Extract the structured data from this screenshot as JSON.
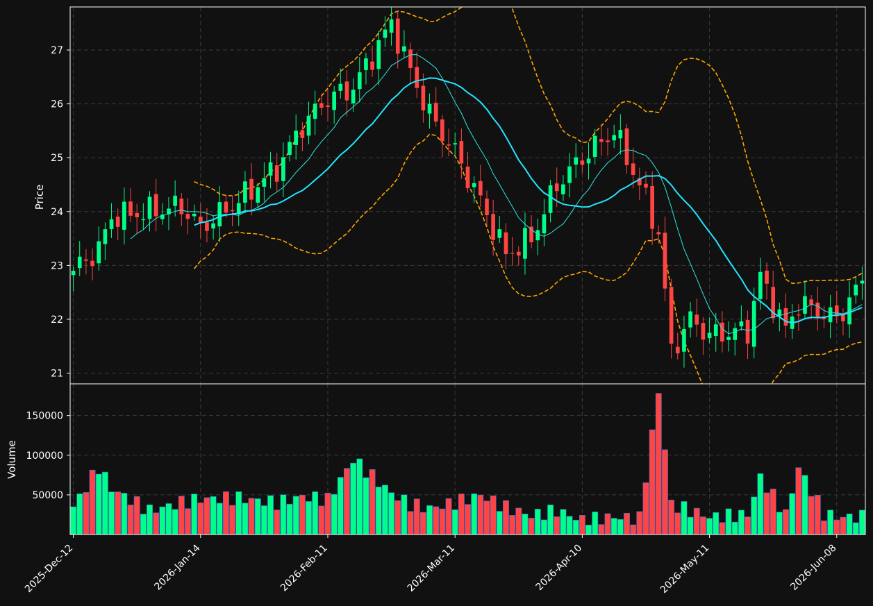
{
  "chart_data": {
    "type": "candlestick",
    "colors": {
      "background": "#111111",
      "up": "#00ff88",
      "down": "#ff4444",
      "sma_fast": "#2ee8e0",
      "sma_slow": "#22e6ff",
      "bands": "#ffa500",
      "text": "#ffffff"
    },
    "price_axis": {
      "label": "Price",
      "ylim": [
        20.8,
        27.8
      ],
      "ticks": [
        21,
        22,
        23,
        24,
        25,
        26,
        27
      ]
    },
    "volume_axis": {
      "label": "Volume",
      "ylim": [
        0,
        190000
      ],
      "ticks": [
        50000,
        100000,
        150000
      ],
      "tick_labels": [
        "50000",
        "100000",
        "150000"
      ]
    },
    "x_ticks": [
      {
        "index": 0,
        "label": "2025-Dec-12"
      },
      {
        "index": 20,
        "label": "2026-Jan-14"
      },
      {
        "index": 40,
        "label": "2026-Feb-11"
      },
      {
        "index": 60,
        "label": "2026-Mar-11"
      },
      {
        "index": 80,
        "label": "2026-Apr-10"
      },
      {
        "index": 100,
        "label": "2026-May-11"
      },
      {
        "index": 120,
        "label": "2026-Jun-08"
      }
    ],
    "grid": true,
    "anchors": [
      {
        "i": 0,
        "close": 22.9,
        "volume": 35000
      },
      {
        "i": 4,
        "close": 23.3,
        "volume": 85000
      },
      {
        "i": 6,
        "close": 23.9,
        "volume": 58000
      },
      {
        "i": 12,
        "close": 24.0,
        "volume": 30000
      },
      {
        "i": 17,
        "close": 24.1,
        "volume": 40000
      },
      {
        "i": 20,
        "close": 23.7,
        "volume": 45000
      },
      {
        "i": 26,
        "close": 24.2,
        "volume": 46000
      },
      {
        "i": 32,
        "close": 24.8,
        "volume": 40000
      },
      {
        "i": 36,
        "close": 25.6,
        "volume": 48000
      },
      {
        "i": 40,
        "close": 26.1,
        "volume": 44000
      },
      {
        "i": 44,
        "close": 26.3,
        "volume": 95000
      },
      {
        "i": 50,
        "close": 27.5,
        "volume": 52000
      },
      {
        "i": 53,
        "close": 26.6,
        "volume": 38000
      },
      {
        "i": 56,
        "close": 25.8,
        "volume": 33000
      },
      {
        "i": 60,
        "close": 25.1,
        "volume": 40000
      },
      {
        "i": 64,
        "close": 24.2,
        "volume": 50000
      },
      {
        "i": 68,
        "close": 23.2,
        "volume": 34000
      },
      {
        "i": 72,
        "close": 23.5,
        "volume": 24000
      },
      {
        "i": 76,
        "close": 24.5,
        "volume": 30000
      },
      {
        "i": 80,
        "close": 25.0,
        "volume": 18000
      },
      {
        "i": 85,
        "close": 25.5,
        "volume": 22000
      },
      {
        "i": 89,
        "close": 24.5,
        "volume": 20000
      },
      {
        "i": 92,
        "close": 23.6,
        "volume": 180000
      },
      {
        "i": 94,
        "close": 21.4,
        "volume": 38000
      },
      {
        "i": 97,
        "close": 22.0,
        "volume": 30000
      },
      {
        "i": 100,
        "close": 21.7,
        "volume": 22000
      },
      {
        "i": 106,
        "close": 21.8,
        "volume": 25000
      },
      {
        "i": 108,
        "close": 22.8,
        "volume": 72000
      },
      {
        "i": 112,
        "close": 21.8,
        "volume": 25000
      },
      {
        "i": 114,
        "close": 22.3,
        "volume": 85000
      },
      {
        "i": 118,
        "close": 22.1,
        "volume": 26000
      },
      {
        "i": 120,
        "close": 22.0,
        "volume": 22000
      },
      {
        "i": 124,
        "close": 22.7,
        "volume": 22000
      }
    ]
  }
}
